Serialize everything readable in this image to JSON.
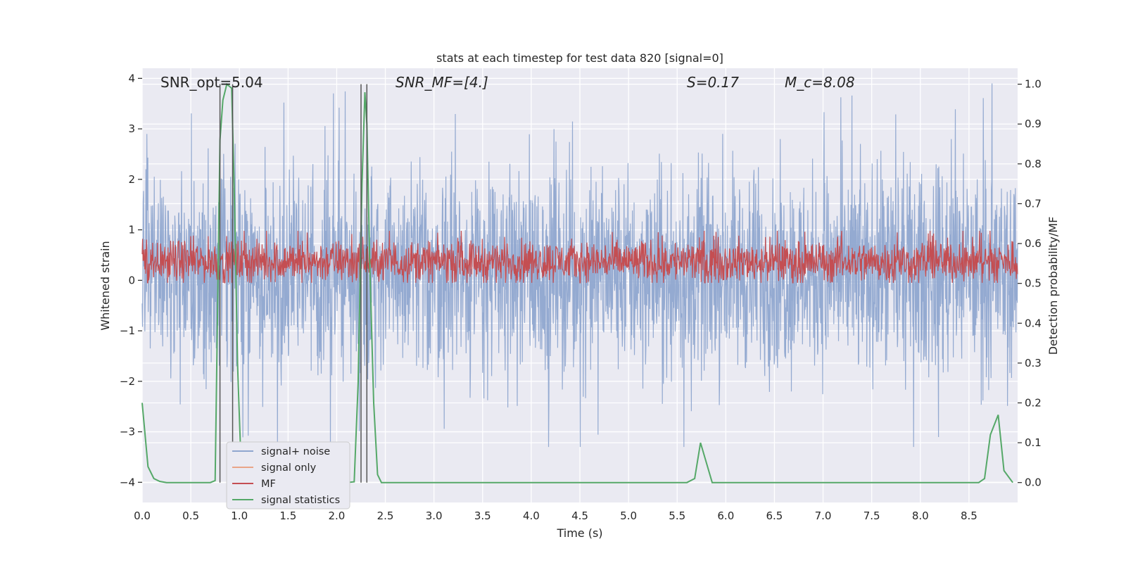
{
  "chart_data": {
    "type": "line",
    "title": "stats at each timestep for test data 820 [signal=0]",
    "xlabel": "Time (s)",
    "ylabel": "Whitened strain",
    "ylabel_right": "Detection probability/MF",
    "xlim": [
      0.0,
      9.0
    ],
    "ylim": [
      -4.4,
      4.2
    ],
    "ylim_right": [
      -0.05,
      1.04
    ],
    "x_ticks": [
      "0.0",
      "0.5",
      "1.0",
      "1.5",
      "2.0",
      "2.5",
      "3.0",
      "3.5",
      "4.0",
      "4.5",
      "5.0",
      "5.5",
      "6.0",
      "6.5",
      "7.0",
      "7.5",
      "8.0",
      "8.5"
    ],
    "x_tick_values": [
      0.0,
      0.5,
      1.0,
      1.5,
      2.0,
      2.5,
      3.0,
      3.5,
      4.0,
      4.5,
      5.0,
      5.5,
      6.0,
      6.5,
      7.0,
      7.5,
      8.0,
      8.5
    ],
    "y_ticks": [
      "−4",
      "−3",
      "−2",
      "−1",
      "0",
      "1",
      "2",
      "3",
      "4"
    ],
    "y_tick_values": [
      -4,
      -3,
      -2,
      -1,
      0,
      1,
      2,
      3,
      4
    ],
    "y_ticks_right": [
      "0.0",
      "0.1",
      "0.2",
      "0.3",
      "0.4",
      "0.5",
      "0.6",
      "0.7",
      "0.8",
      "0.9",
      "1.0"
    ],
    "y_tick_values_right": [
      0.0,
      0.1,
      0.2,
      0.3,
      0.4,
      0.5,
      0.6,
      0.7,
      0.8,
      0.9,
      1.0
    ],
    "annotations": [
      {
        "id": "snr-opt",
        "text": "SNR_opt=5.04",
        "italic": false
      },
      {
        "id": "snr-mf",
        "text": "SNR_MF=[4.]",
        "italic": true
      },
      {
        "id": "s-value",
        "text": "S=0.17",
        "italic": true
      },
      {
        "id": "mc-value",
        "text": "M_c=8.08",
        "italic": true
      }
    ],
    "vertical_markers": [
      0.8,
      0.93,
      2.25,
      2.31
    ],
    "series": [
      {
        "name": "signal+ noise",
        "color": "#8fa6cf",
        "axis": "left",
        "kind": "noise",
        "range": [
          -3.3,
          3.9
        ],
        "band": [
          -1.4,
          1.7
        ]
      },
      {
        "name": "signal only",
        "color": "#e9a488",
        "axis": "left",
        "kind": "flat",
        "values": []
      },
      {
        "name": "MF",
        "color": "#c44e52",
        "axis": "left",
        "kind": "noise",
        "range": [
          -0.05,
          0.98
        ],
        "band": [
          0.05,
          0.7
        ]
      },
      {
        "name": "signal statistics",
        "color": "#55a868",
        "axis": "right",
        "x": [
          0.0,
          0.06,
          0.12,
          0.18,
          0.25,
          0.4,
          0.55,
          0.7,
          0.75,
          0.8,
          0.83,
          0.87,
          0.92,
          0.95,
          0.98,
          1.02,
          1.05,
          1.08,
          1.12,
          1.2,
          1.4,
          1.8,
          2.1,
          2.18,
          2.22,
          2.26,
          2.29,
          2.31,
          2.34,
          2.38,
          2.42,
          2.46,
          2.5,
          3.0,
          4.0,
          5.0,
          5.6,
          5.68,
          5.74,
          5.8,
          5.86,
          5.95,
          6.5,
          7.0,
          8.0,
          8.6,
          8.66,
          8.72,
          8.8,
          8.86,
          8.95
        ],
        "values": [
          0.2,
          0.04,
          0.01,
          0.003,
          0.0,
          0.0,
          0.0,
          0.0,
          0.005,
          0.86,
          0.96,
          1.0,
          0.99,
          0.7,
          0.3,
          0.02,
          0.0,
          0.0,
          0.0,
          0.0,
          0.0,
          0.0,
          0.0,
          0.002,
          0.25,
          0.75,
          0.98,
          0.9,
          0.55,
          0.2,
          0.02,
          0.0,
          0.0,
          0.0,
          0.0,
          0.0,
          0.0,
          0.01,
          0.1,
          0.05,
          0.0,
          0.0,
          0.0,
          0.0,
          0.0,
          0.0,
          0.01,
          0.12,
          0.17,
          0.03,
          0.0
        ]
      }
    ],
    "legend": [
      "signal+ noise",
      "signal only",
      "MF",
      "signal statistics"
    ],
    "legend_position": "lower-left",
    "grid": true
  }
}
